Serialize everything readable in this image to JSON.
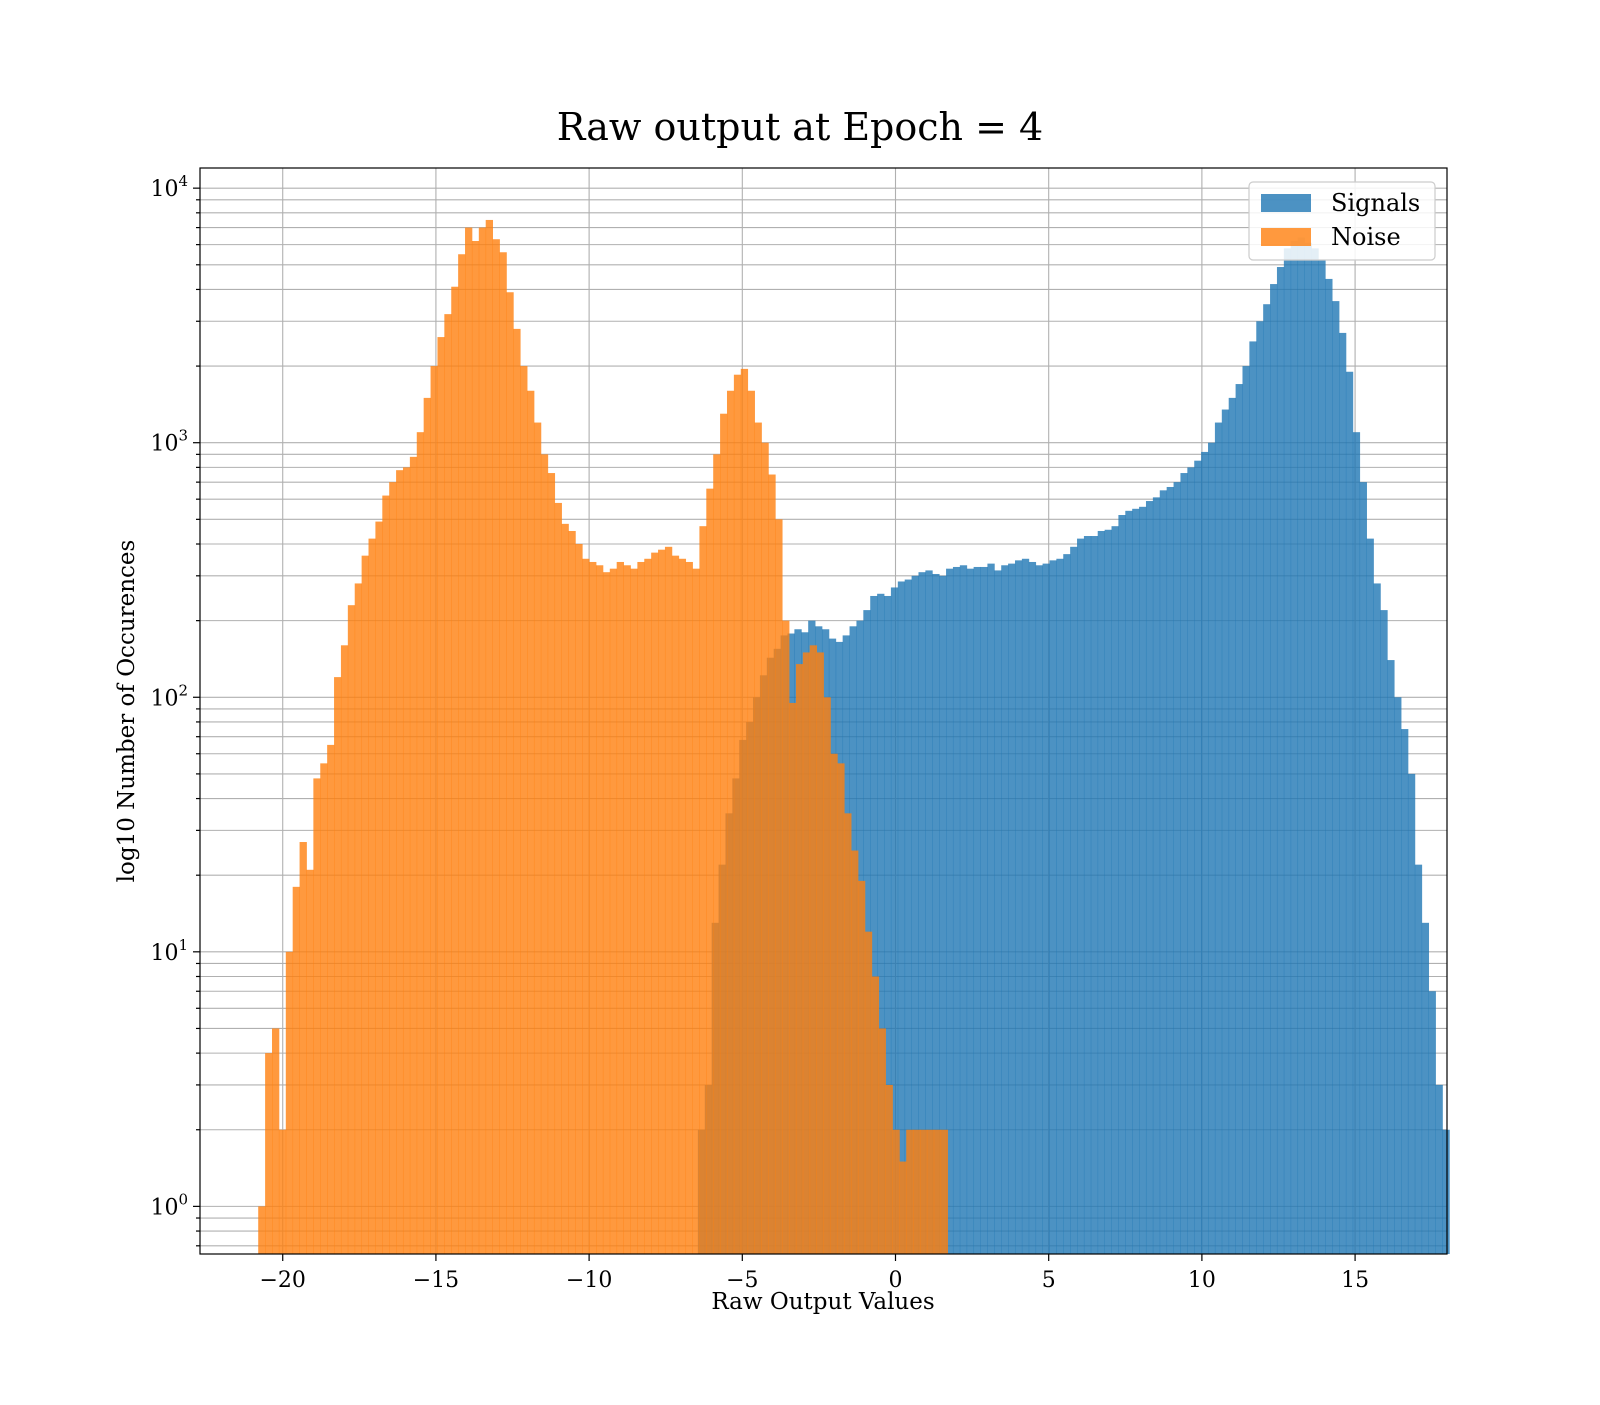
{
  "chart_data": {
    "type": "bar",
    "title": "Raw output at Epoch = 4",
    "xlabel": "Raw Output Values",
    "ylabel": "log10 Number of Occurences",
    "xlim": [
      -22.7,
      18
    ],
    "ylim": [
      0.65,
      12000
    ],
    "y_scale": "log",
    "grid": true,
    "legend_position": "upper-right",
    "x_ticks": [
      -20,
      -15,
      -10,
      -5,
      0,
      5,
      10,
      15
    ],
    "x_tick_labels": [
      "−20",
      "−15",
      "−10",
      "−5",
      "0",
      "5",
      "10",
      "15"
    ],
    "y_ticks": [
      {
        "value": 1,
        "base": "10",
        "exp": "0"
      },
      {
        "value": 10,
        "base": "10",
        "exp": "1"
      },
      {
        "value": 100,
        "base": "10",
        "exp": "2"
      },
      {
        "value": 1000,
        "base": "10",
        "exp": "3"
      },
      {
        "value": 10000,
        "base": "10",
        "exp": "4"
      }
    ],
    "bin_width": 0.225,
    "series": [
      {
        "name": "Signals",
        "color": "#1f77b4",
        "opacity": 0.8,
        "x_start": -6.45,
        "values": [
          2,
          3,
          13,
          22,
          35,
          48,
          68,
          80,
          100,
          122,
          143,
          155,
          175,
          178,
          185,
          180,
          200,
          190,
          185,
          170,
          165,
          175,
          190,
          200,
          220,
          250,
          255,
          250,
          270,
          285,
          290,
          300,
          310,
          315,
          305,
          300,
          320,
          325,
          330,
          320,
          325,
          325,
          335,
          315,
          330,
          335,
          345,
          350,
          340,
          330,
          335,
          345,
          350,
          365,
          390,
          420,
          430,
          430,
          450,
          455,
          470,
          520,
          540,
          550,
          560,
          590,
          610,
          650,
          670,
          700,
          760,
          800,
          850,
          920,
          1000,
          1200,
          1350,
          1500,
          1700,
          2000,
          2500,
          3000,
          3500,
          4200,
          4900,
          5800,
          6200,
          6400,
          6100,
          5800,
          5200,
          4400,
          3600,
          2700,
          1900,
          1100,
          700,
          420,
          280,
          220,
          140,
          100,
          75,
          50,
          22,
          13,
          7,
          3,
          2
        ]
      },
      {
        "name": "Noise",
        "color": "#ff7f0e",
        "opacity": 0.8,
        "x_start": -20.8,
        "values": [
          1,
          4,
          5,
          2,
          10,
          18,
          27,
          21,
          48,
          55,
          65,
          120,
          160,
          230,
          280,
          360,
          420,
          490,
          620,
          700,
          780,
          800,
          880,
          1100,
          1500,
          2000,
          2600,
          3200,
          4100,
          5500,
          7000,
          6200,
          7000,
          7500,
          6300,
          5600,
          3900,
          2800,
          2000,
          1600,
          1200,
          900,
          760,
          580,
          480,
          450,
          400,
          350,
          340,
          330,
          310,
          320,
          340,
          330,
          320,
          340,
          350,
          370,
          380,
          390,
          360,
          350,
          340,
          320,
          470,
          660,
          900,
          1300,
          1600,
          1850,
          1950,
          1600,
          1200,
          1000,
          750,
          500,
          200,
          95,
          135,
          150,
          160,
          150,
          100,
          60,
          55,
          35,
          25,
          19,
          12,
          8,
          5,
          3,
          2,
          1.5,
          2,
          2,
          2,
          2,
          2,
          2
        ]
      }
    ]
  }
}
